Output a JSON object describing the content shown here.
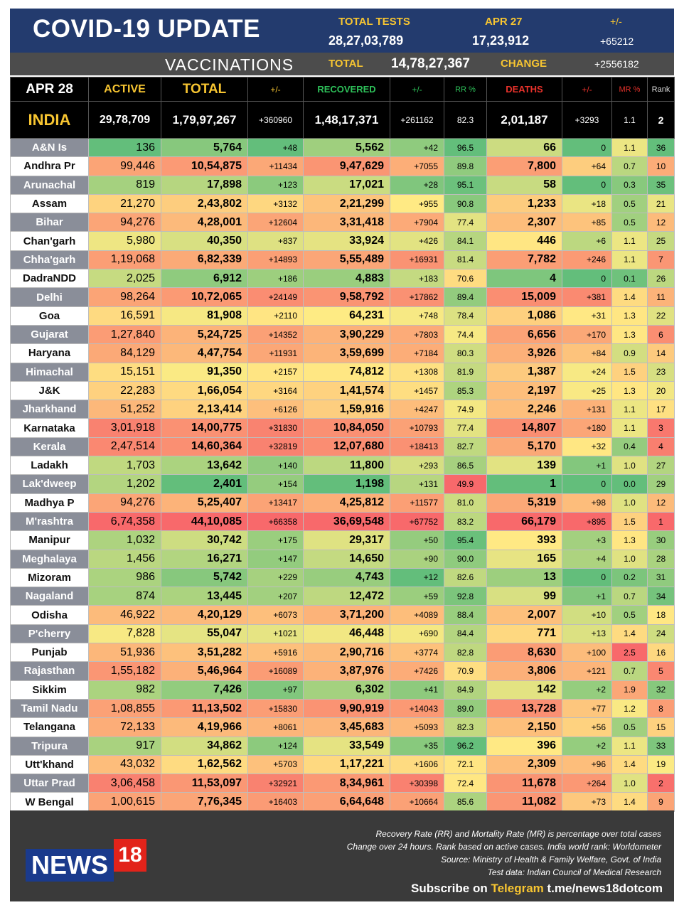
{
  "header": {
    "title": "COVID-19 UPDATE",
    "total_tests_label": "TOTAL TESTS",
    "total_tests_value": "28,27,03,789",
    "date_label": "APR 27",
    "date_tests_value": "17,23,912",
    "change_label": "+/-",
    "change_value": "+65212"
  },
  "vaccinations": {
    "title": "VACCINATIONS",
    "total_label": "TOTAL",
    "total_value": "14,78,27,367",
    "change_label": "CHANGE",
    "change_value": "+2556182"
  },
  "columns": {
    "date": "APR 28",
    "active": "ACTIVE",
    "total": "TOTAL",
    "total_change": "+/-",
    "recovered": "RECOVERED",
    "recovered_change": "+/-",
    "rr": "RR %",
    "deaths": "DEATHS",
    "deaths_change": "+/-",
    "mr": "MR %",
    "rank": "Rank"
  },
  "colors": {
    "header_label": "#f7c531",
    "recovered_label": "#2ec25a",
    "deaths_label": "#e8322b",
    "green": "#63be7b",
    "yellow": "#ffeb84",
    "red": "#f8696b"
  },
  "india": {
    "name": "INDIA",
    "active": "29,78,709",
    "total": "1,79,97,267",
    "total_change": "+360960",
    "recovered": "1,48,17,371",
    "recovered_change": "+261162",
    "rr": "82.3",
    "deaths": "2,01,187",
    "deaths_change": "+3293",
    "mr": "1.1",
    "rank": "2"
  },
  "states": [
    {
      "name": "A&N Is",
      "active": "136",
      "total": "5,764",
      "total_change": "+48",
      "recovered": "5,562",
      "recovered_change": "+42",
      "rr": "96.5",
      "deaths": "66",
      "deaths_change": "0",
      "mr": "1.1",
      "rank": "36"
    },
    {
      "name": "Andhra Pr",
      "active": "99,446",
      "total": "10,54,875",
      "total_change": "+11434",
      "recovered": "9,47,629",
      "recovered_change": "+7055",
      "rr": "89.8",
      "deaths": "7,800",
      "deaths_change": "+64",
      "mr": "0.7",
      "rank": "10"
    },
    {
      "name": "Arunachal",
      "active": "819",
      "total": "17,898",
      "total_change": "+123",
      "recovered": "17,021",
      "recovered_change": "+28",
      "rr": "95.1",
      "deaths": "58",
      "deaths_change": "0",
      "mr": "0.3",
      "rank": "35"
    },
    {
      "name": "Assam",
      "active": "21,270",
      "total": "2,43,802",
      "total_change": "+3132",
      "recovered": "2,21,299",
      "recovered_change": "+955",
      "rr": "90.8",
      "deaths": "1,233",
      "deaths_change": "+18",
      "mr": "0.5",
      "rank": "21"
    },
    {
      "name": "Bihar",
      "active": "94,276",
      "total": "4,28,001",
      "total_change": "+12604",
      "recovered": "3,31,418",
      "recovered_change": "+7904",
      "rr": "77.4",
      "deaths": "2,307",
      "deaths_change": "+85",
      "mr": "0.5",
      "rank": "12"
    },
    {
      "name": "Chan'garh",
      "active": "5,980",
      "total": "40,350",
      "total_change": "+837",
      "recovered": "33,924",
      "recovered_change": "+426",
      "rr": "84.1",
      "deaths": "446",
      "deaths_change": "+6",
      "mr": "1.1",
      "rank": "25"
    },
    {
      "name": "Chha'garh",
      "active": "1,19,068",
      "total": "6,82,339",
      "total_change": "+14893",
      "recovered": "5,55,489",
      "recovered_change": "+16931",
      "rr": "81.4",
      "deaths": "7,782",
      "deaths_change": "+246",
      "mr": "1.1",
      "rank": "7"
    },
    {
      "name": "DadraNDD",
      "active": "2,025",
      "total": "6,912",
      "total_change": "+186",
      "recovered": "4,883",
      "recovered_change": "+183",
      "rr": "70.6",
      "deaths": "4",
      "deaths_change": "0",
      "mr": "0.1",
      "rank": "26"
    },
    {
      "name": "Delhi",
      "active": "98,264",
      "total": "10,72,065",
      "total_change": "+24149",
      "recovered": "9,58,792",
      "recovered_change": "+17862",
      "rr": "89.4",
      "deaths": "15,009",
      "deaths_change": "+381",
      "mr": "1.4",
      "rank": "11"
    },
    {
      "name": "Goa",
      "active": "16,591",
      "total": "81,908",
      "total_change": "+2110",
      "recovered": "64,231",
      "recovered_change": "+748",
      "rr": "78.4",
      "deaths": "1,086",
      "deaths_change": "+31",
      "mr": "1.3",
      "rank": "22"
    },
    {
      "name": "Gujarat",
      "active": "1,27,840",
      "total": "5,24,725",
      "total_change": "+14352",
      "recovered": "3,90,229",
      "recovered_change": "+7803",
      "rr": "74.4",
      "deaths": "6,656",
      "deaths_change": "+170",
      "mr": "1.3",
      "rank": "6"
    },
    {
      "name": "Haryana",
      "active": "84,129",
      "total": "4,47,754",
      "total_change": "+11931",
      "recovered": "3,59,699",
      "recovered_change": "+7184",
      "rr": "80.3",
      "deaths": "3,926",
      "deaths_change": "+84",
      "mr": "0.9",
      "rank": "14"
    },
    {
      "name": "Himachal",
      "active": "15,151",
      "total": "91,350",
      "total_change": "+2157",
      "recovered": "74,812",
      "recovered_change": "+1308",
      "rr": "81.9",
      "deaths": "1,387",
      "deaths_change": "+24",
      "mr": "1.5",
      "rank": "23"
    },
    {
      "name": "J&K",
      "active": "22,283",
      "total": "1,66,054",
      "total_change": "+3164",
      "recovered": "1,41,574",
      "recovered_change": "+1457",
      "rr": "85.3",
      "deaths": "2,197",
      "deaths_change": "+25",
      "mr": "1.3",
      "rank": "20"
    },
    {
      "name": "Jharkhand",
      "active": "51,252",
      "total": "2,13,414",
      "total_change": "+6126",
      "recovered": "1,59,916",
      "recovered_change": "+4247",
      "rr": "74.9",
      "deaths": "2,246",
      "deaths_change": "+131",
      "mr": "1.1",
      "rank": "17"
    },
    {
      "name": "Karnataka",
      "active": "3,01,918",
      "total": "14,00,775",
      "total_change": "+31830",
      "recovered": "10,84,050",
      "recovered_change": "+10793",
      "rr": "77.4",
      "deaths": "14,807",
      "deaths_change": "+180",
      "mr": "1.1",
      "rank": "3"
    },
    {
      "name": "Kerala",
      "active": "2,47,514",
      "total": "14,60,364",
      "total_change": "+32819",
      "recovered": "12,07,680",
      "recovered_change": "+18413",
      "rr": "82.7",
      "deaths": "5,170",
      "deaths_change": "+32",
      "mr": "0.4",
      "rank": "4"
    },
    {
      "name": "Ladakh",
      "active": "1,703",
      "total": "13,642",
      "total_change": "+140",
      "recovered": "11,800",
      "recovered_change": "+293",
      "rr": "86.5",
      "deaths": "139",
      "deaths_change": "+1",
      "mr": "1.0",
      "rank": "27"
    },
    {
      "name": "Lak'dweep",
      "active": "1,202",
      "total": "2,401",
      "total_change": "+154",
      "recovered": "1,198",
      "recovered_change": "+131",
      "rr": "49.9",
      "deaths": "1",
      "deaths_change": "0",
      "mr": "0.0",
      "rank": "29"
    },
    {
      "name": "Madhya P",
      "active": "94,276",
      "total": "5,25,407",
      "total_change": "+13417",
      "recovered": "4,25,812",
      "recovered_change": "+11577",
      "rr": "81.0",
      "deaths": "5,319",
      "deaths_change": "+98",
      "mr": "1.0",
      "rank": "12"
    },
    {
      "name": "M'rashtra",
      "active": "6,74,358",
      "total": "44,10,085",
      "total_change": "+66358",
      "recovered": "36,69,548",
      "recovered_change": "+67752",
      "rr": "83.2",
      "deaths": "66,179",
      "deaths_change": "+895",
      "mr": "1.5",
      "rank": "1"
    },
    {
      "name": "Manipur",
      "active": "1,032",
      "total": "30,742",
      "total_change": "+175",
      "recovered": "29,317",
      "recovered_change": "+50",
      "rr": "95.4",
      "deaths": "393",
      "deaths_change": "+3",
      "mr": "1.3",
      "rank": "30"
    },
    {
      "name": "Meghalaya",
      "active": "1,456",
      "total": "16,271",
      "total_change": "+147",
      "recovered": "14,650",
      "recovered_change": "+90",
      "rr": "90.0",
      "deaths": "165",
      "deaths_change": "+4",
      "mr": "1.0",
      "rank": "28"
    },
    {
      "name": "Mizoram",
      "active": "986",
      "total": "5,742",
      "total_change": "+229",
      "recovered": "4,743",
      "recovered_change": "+12",
      "rr": "82.6",
      "deaths": "13",
      "deaths_change": "0",
      "mr": "0.2",
      "rank": "31"
    },
    {
      "name": "Nagaland",
      "active": "874",
      "total": "13,445",
      "total_change": "+207",
      "recovered": "12,472",
      "recovered_change": "+59",
      "rr": "92.8",
      "deaths": "99",
      "deaths_change": "+1",
      "mr": "0.7",
      "rank": "34"
    },
    {
      "name": "Odisha",
      "active": "46,922",
      "total": "4,20,129",
      "total_change": "+6073",
      "recovered": "3,71,200",
      "recovered_change": "+4089",
      "rr": "88.4",
      "deaths": "2,007",
      "deaths_change": "+10",
      "mr": "0.5",
      "rank": "18"
    },
    {
      "name": "P'cherry",
      "active": "7,828",
      "total": "55,047",
      "total_change": "+1021",
      "recovered": "46,448",
      "recovered_change": "+690",
      "rr": "84.4",
      "deaths": "771",
      "deaths_change": "+13",
      "mr": "1.4",
      "rank": "24"
    },
    {
      "name": "Punjab",
      "active": "51,936",
      "total": "3,51,282",
      "total_change": "+5916",
      "recovered": "2,90,716",
      "recovered_change": "+3774",
      "rr": "82.8",
      "deaths": "8,630",
      "deaths_change": "+100",
      "mr": "2.5",
      "rank": "16"
    },
    {
      "name": "Rajasthan",
      "active": "1,55,182",
      "total": "5,46,964",
      "total_change": "+16089",
      "recovered": "3,87,976",
      "recovered_change": "+7426",
      "rr": "70.9",
      "deaths": "3,806",
      "deaths_change": "+121",
      "mr": "0.7",
      "rank": "5"
    },
    {
      "name": "Sikkim",
      "active": "982",
      "total": "7,426",
      "total_change": "+97",
      "recovered": "6,302",
      "recovered_change": "+41",
      "rr": "84.9",
      "deaths": "142",
      "deaths_change": "+2",
      "mr": "1.9",
      "rank": "32"
    },
    {
      "name": "Tamil Nadu",
      "active": "1,08,855",
      "total": "11,13,502",
      "total_change": "+15830",
      "recovered": "9,90,919",
      "recovered_change": "+14043",
      "rr": "89.0",
      "deaths": "13,728",
      "deaths_change": "+77",
      "mr": "1.2",
      "rank": "8"
    },
    {
      "name": "Telangana",
      "active": "72,133",
      "total": "4,19,966",
      "total_change": "+8061",
      "recovered": "3,45,683",
      "recovered_change": "+5093",
      "rr": "82.3",
      "deaths": "2,150",
      "deaths_change": "+56",
      "mr": "0.5",
      "rank": "15"
    },
    {
      "name": "Tripura",
      "active": "917",
      "total": "34,862",
      "total_change": "+124",
      "recovered": "33,549",
      "recovered_change": "+35",
      "rr": "96.2",
      "deaths": "396",
      "deaths_change": "+2",
      "mr": "1.1",
      "rank": "33"
    },
    {
      "name": "Utt'khand",
      "active": "43,032",
      "total": "1,62,562",
      "total_change": "+5703",
      "recovered": "1,17,221",
      "recovered_change": "+1606",
      "rr": "72.1",
      "deaths": "2,309",
      "deaths_change": "+96",
      "mr": "1.4",
      "rank": "19"
    },
    {
      "name": "Uttar Prad",
      "active": "3,06,458",
      "total": "11,53,097",
      "total_change": "+32921",
      "recovered": "8,34,961",
      "recovered_change": "+30398",
      "rr": "72.4",
      "deaths": "11,678",
      "deaths_change": "+264",
      "mr": "1.0",
      "rank": "2"
    },
    {
      "name": "W Bengal",
      "active": "1,00,615",
      "total": "7,76,345",
      "total_change": "+16403",
      "recovered": "6,64,648",
      "recovered_change": "+10664",
      "rr": "85.6",
      "deaths": "11,082",
      "deaths_change": "+73",
      "mr": "1.4",
      "rank": "9"
    }
  ],
  "footer": {
    "logo_news": "NEWS",
    "logo_18": "18",
    "note1": "Recovery Rate (RR) and Mortality Rate (MR) is percentage over total cases",
    "note2": "Change over 24 hours. Rank based on active cases. India world rank: Worldometer",
    "note3": "Source: Ministry of Health & Family Welfare, Govt. of India",
    "note4": "Test data: Indian Council of Medical Research",
    "subscribe_prefix": "Subscribe on ",
    "subscribe_platform": "Telegram",
    "subscribe_link": " t.me/news18dotcom"
  }
}
